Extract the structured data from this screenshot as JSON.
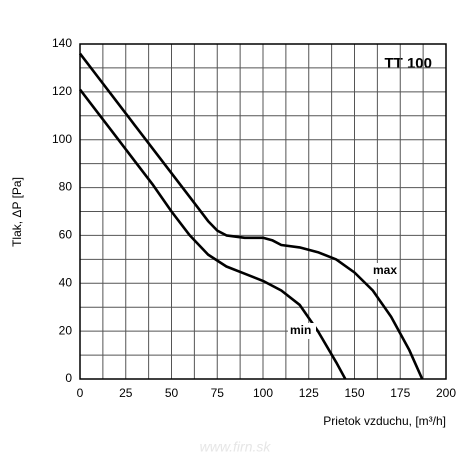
{
  "chart_data": {
    "type": "line",
    "title": "TT 100",
    "y_label": "Tlak,  ΔP [Pa]",
    "x_label": "Prietok vzduchu, [m³/h]",
    "watermark": "www.firn.sk",
    "xlim": [
      0,
      200
    ],
    "ylim": [
      0,
      140
    ],
    "xticks": [
      0,
      25,
      50,
      75,
      100,
      125,
      150,
      175,
      200
    ],
    "yticks": [
      0,
      20,
      40,
      60,
      80,
      100,
      120,
      140
    ],
    "grid": true,
    "series": [
      {
        "name": "max",
        "color": "#000000",
        "x": [
          0,
          10,
          20,
          30,
          40,
          50,
          60,
          70,
          75,
          80,
          90,
          95,
          100,
          105,
          110,
          120,
          130,
          140,
          150,
          160,
          170,
          180,
          187
        ],
        "values": [
          136,
          126,
          116,
          106,
          96,
          86,
          76,
          66,
          62,
          60,
          59,
          59,
          59,
          58,
          56,
          55,
          53,
          50,
          44.5,
          37,
          26,
          12,
          0
        ]
      },
      {
        "name": "min",
        "color": "#000000",
        "x": [
          0,
          10,
          20,
          30,
          40,
          50,
          60,
          70,
          80,
          90,
          100,
          110,
          120,
          130,
          140,
          145
        ],
        "values": [
          121,
          111,
          101,
          91,
          81,
          70,
          60,
          52,
          47,
          44,
          41,
          37,
          31,
          20,
          7,
          0
        ]
      }
    ]
  }
}
